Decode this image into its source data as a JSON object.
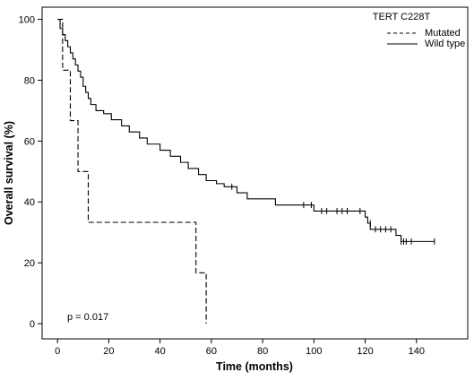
{
  "chart_data": {
    "type": "line",
    "title": "",
    "xlabel": "Time (months)",
    "ylabel": "Overall survival (%)",
    "xlim": [
      -6,
      160
    ],
    "ylim": [
      -5,
      104
    ],
    "xticks": [
      "0",
      "20",
      "40",
      "60",
      "80",
      "100",
      "120",
      "140"
    ],
    "yticks": [
      "0",
      "20",
      "40",
      "60",
      "80",
      "100"
    ],
    "grid": false,
    "legend": {
      "title": "TERT C228T",
      "position": "top-right"
    },
    "annotation": "p = 0.017",
    "series": [
      {
        "name": "Mutated",
        "style": "dashed",
        "color": "#000000",
        "points": [
          [
            0,
            100
          ],
          [
            2,
            100
          ],
          [
            2,
            83.3
          ],
          [
            5,
            83.3
          ],
          [
            5,
            66.7
          ],
          [
            8,
            66.7
          ],
          [
            8,
            50
          ],
          [
            12,
            50
          ],
          [
            12,
            33.3
          ],
          [
            54,
            33.3
          ],
          [
            54,
            16.7
          ],
          [
            58,
            16.7
          ],
          [
            58,
            0
          ]
        ],
        "censored": []
      },
      {
        "name": "Wild type",
        "style": "solid",
        "color": "#000000",
        "points": [
          [
            0,
            100
          ],
          [
            1,
            100
          ],
          [
            1,
            97
          ],
          [
            2,
            97
          ],
          [
            2,
            95
          ],
          [
            3,
            95
          ],
          [
            3,
            93
          ],
          [
            4,
            93
          ],
          [
            4,
            91
          ],
          [
            5,
            91
          ],
          [
            5,
            89
          ],
          [
            6,
            89
          ],
          [
            6,
            87
          ],
          [
            7,
            87
          ],
          [
            7,
            85
          ],
          [
            8,
            85
          ],
          [
            8,
            83
          ],
          [
            9,
            83
          ],
          [
            9,
            81
          ],
          [
            10,
            81
          ],
          [
            10,
            78
          ],
          [
            11,
            78
          ],
          [
            11,
            76
          ],
          [
            12,
            76
          ],
          [
            12,
            74
          ],
          [
            13,
            74
          ],
          [
            13,
            72
          ],
          [
            15,
            72
          ],
          [
            15,
            70
          ],
          [
            18,
            70
          ],
          [
            18,
            69
          ],
          [
            21,
            69
          ],
          [
            21,
            67
          ],
          [
            25,
            67
          ],
          [
            25,
            65
          ],
          [
            28,
            65
          ],
          [
            28,
            63
          ],
          [
            32,
            63
          ],
          [
            32,
            61
          ],
          [
            35,
            61
          ],
          [
            35,
            59
          ],
          [
            40,
            59
          ],
          [
            40,
            57
          ],
          [
            44,
            57
          ],
          [
            44,
            55
          ],
          [
            48,
            55
          ],
          [
            48,
            53
          ],
          [
            51,
            53
          ],
          [
            51,
            51
          ],
          [
            55,
            51
          ],
          [
            55,
            49
          ],
          [
            58,
            49
          ],
          [
            58,
            47
          ],
          [
            62,
            47
          ],
          [
            62,
            46
          ],
          [
            65,
            46
          ],
          [
            65,
            45
          ],
          [
            70,
            45
          ],
          [
            70,
            43
          ],
          [
            74,
            43
          ],
          [
            74,
            41
          ],
          [
            85,
            41
          ],
          [
            85,
            39
          ],
          [
            100,
            39
          ],
          [
            100,
            37
          ],
          [
            120,
            37
          ],
          [
            120,
            35
          ],
          [
            121,
            35
          ],
          [
            121,
            33
          ],
          [
            122,
            33
          ],
          [
            122,
            31
          ],
          [
            132,
            31
          ],
          [
            132,
            29
          ],
          [
            134,
            29
          ],
          [
            134,
            27
          ],
          [
            147,
            27
          ]
        ],
        "censored": [
          [
            68,
            45
          ],
          [
            96,
            39
          ],
          [
            99,
            39
          ],
          [
            103,
            37
          ],
          [
            105,
            37
          ],
          [
            109,
            37
          ],
          [
            111,
            37
          ],
          [
            113,
            37
          ],
          [
            118,
            37
          ],
          [
            122,
            33
          ],
          [
            124,
            31
          ],
          [
            126,
            31
          ],
          [
            128,
            31
          ],
          [
            130,
            31
          ],
          [
            134,
            27
          ],
          [
            135,
            27
          ],
          [
            136,
            27
          ],
          [
            138,
            27
          ],
          [
            147,
            27
          ]
        ]
      }
    ]
  }
}
